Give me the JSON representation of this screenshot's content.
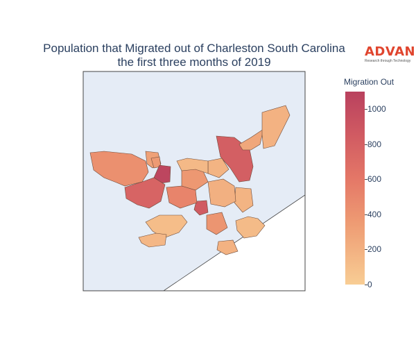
{
  "title_line1": "Population that Migrated out of Charleston South Carolina",
  "title_line2": "the first three months of 2019",
  "logo": {
    "brand": "ADVAN",
    "tagline": "Research through Technology"
  },
  "colorbar": {
    "title": "Migration Out",
    "min": 0,
    "max": 1100,
    "ticks": [
      "0",
      "200",
      "400",
      "600",
      "800",
      "1000"
    ],
    "colors": [
      "#f8cd94",
      "#ee9b73",
      "#e47767",
      "#d05a62",
      "#b9415e"
    ]
  },
  "colors": {
    "water": "#e5ecf6",
    "land": "#ffffff",
    "border": "#6b4a3a"
  },
  "regions": [
    {
      "name": "west-large",
      "value": 360
    },
    {
      "name": "north-west-small",
      "value": 240
    },
    {
      "name": "north-west-top",
      "value": 280
    },
    {
      "name": "peninsula-dark",
      "value": 1050
    },
    {
      "name": "west-lower",
      "value": 730
    },
    {
      "name": "north-east-large",
      "value": 780
    },
    {
      "name": "north-east-thin",
      "value": 210
    },
    {
      "name": "north-east-top",
      "value": 150
    },
    {
      "name": "south-west",
      "value": 90
    },
    {
      "name": "south-west-lower",
      "value": 120
    },
    {
      "name": "central-east",
      "value": 140
    },
    {
      "name": "james-island",
      "value": 320
    },
    {
      "name": "south-island",
      "value": 100
    },
    {
      "name": "south-tip",
      "value": 150
    },
    {
      "name": "downtown-red",
      "value": 820
    },
    {
      "name": "downtown-a",
      "value": 300
    },
    {
      "name": "downtown-b",
      "value": 450
    },
    {
      "name": "downtown-c",
      "value": 160
    },
    {
      "name": "north-mid",
      "value": 140
    },
    {
      "name": "north-strip",
      "value": 110
    }
  ]
}
